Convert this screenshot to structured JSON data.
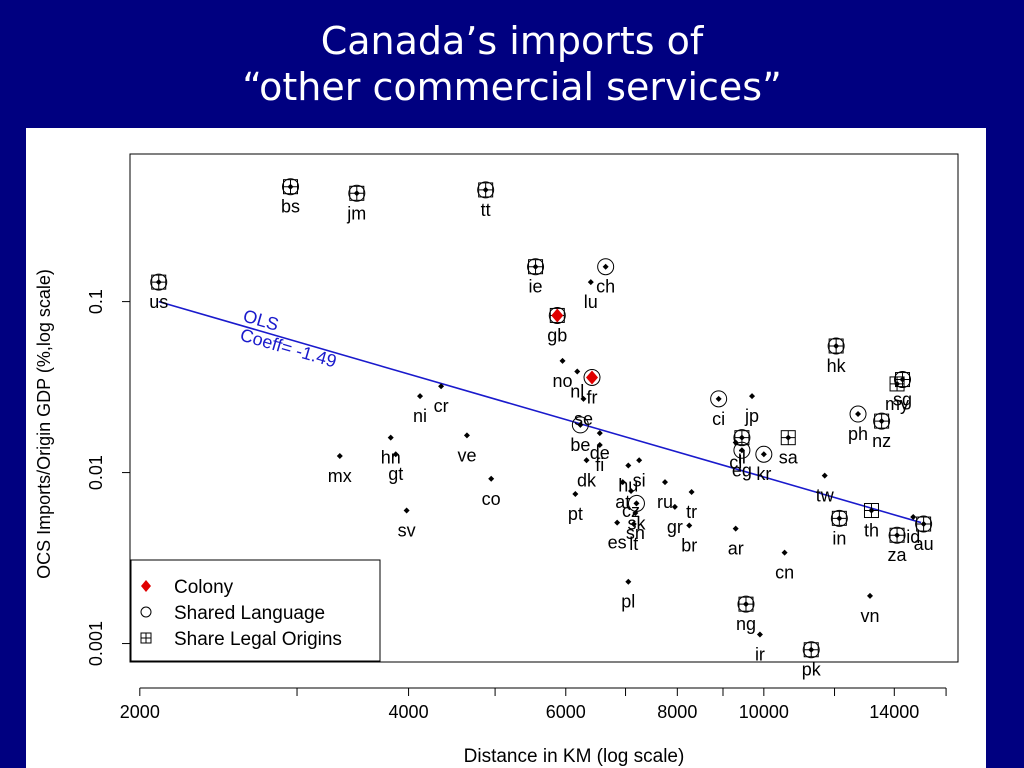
{
  "slide": {
    "title_line1": "Canada’s imports of",
    "title_line2": "“other commercial services”"
  },
  "chart_data": {
    "type": "scatter",
    "xlabel": "Distance in KM (log scale)",
    "ylabel": "OCS Imports/Origin GDP (%,log scale)",
    "x_scale": "log",
    "y_scale": "log",
    "xlim": [
      1950,
      16500
    ],
    "ylim": [
      0.00078,
      0.73
    ],
    "x_ticks": [
      {
        "value": 2000,
        "label": "2000"
      },
      {
        "value": 4000,
        "label": "4000"
      },
      {
        "value": 6000,
        "label": "6000"
      },
      {
        "value": 8000,
        "label": "8000"
      },
      {
        "value": 10000,
        "label": "10000"
      },
      {
        "value": 14000,
        "label": "14000"
      }
    ],
    "x_minor_ticks": [
      3000,
      5000,
      7000,
      9000,
      12000,
      16000
    ],
    "y_ticks": [
      {
        "value": 0.001,
        "label": "0.001"
      },
      {
        "value": 0.01,
        "label": "0.01"
      },
      {
        "value": 0.1,
        "label": "0.1"
      }
    ],
    "grid": false,
    "legend": {
      "position": "bottom-left",
      "entries": [
        {
          "label": "Colony",
          "marker": "red-diamond"
        },
        {
          "label": "Shared Language",
          "marker": "open-circle"
        },
        {
          "label": "Share Legal Origins",
          "marker": "boxed-plus"
        }
      ]
    },
    "ols": {
      "label_line1": "OLS",
      "label_line2": "Coeff= -1.49",
      "color": "#1a1acc",
      "start": [
        2100,
        0.1
      ],
      "end": [
        15000,
        0.0051
      ]
    },
    "colors": {
      "colony": "#e00000",
      "point": "#000000",
      "line": "#1a1acc"
    },
    "points": [
      {
        "label": "us",
        "x": 2100,
        "y": 0.13,
        "lang": true,
        "legal": true,
        "colony": false
      },
      {
        "label": "bs",
        "x": 2950,
        "y": 0.47,
        "lang": true,
        "legal": true,
        "colony": false
      },
      {
        "label": "jm",
        "x": 3500,
        "y": 0.43,
        "lang": true,
        "legal": true,
        "colony": false
      },
      {
        "label": "tt",
        "x": 4880,
        "y": 0.45,
        "lang": true,
        "legal": true,
        "colony": false
      },
      {
        "label": "ie",
        "x": 5550,
        "y": 0.16,
        "lang": true,
        "legal": true,
        "colony": false
      },
      {
        "label": "ch",
        "x": 6650,
        "y": 0.16,
        "lang": true,
        "legal": false,
        "colony": false
      },
      {
        "label": "lu",
        "x": 6400,
        "y": 0.13,
        "lang": false,
        "legal": false,
        "colony": false
      },
      {
        "label": "gb",
        "x": 5870,
        "y": 0.083,
        "lang": true,
        "legal": true,
        "colony": true
      },
      {
        "label": "no",
        "x": 5950,
        "y": 0.045,
        "lang": false,
        "legal": false,
        "colony": false
      },
      {
        "label": "nl",
        "x": 6180,
        "y": 0.039,
        "lang": false,
        "legal": false,
        "colony": false
      },
      {
        "label": "fr",
        "x": 6420,
        "y": 0.036,
        "lang": true,
        "legal": false,
        "colony": true
      },
      {
        "label": "se",
        "x": 6280,
        "y": 0.027,
        "lang": false,
        "legal": false,
        "colony": false
      },
      {
        "label": "be",
        "x": 6230,
        "y": 0.019,
        "lang": true,
        "legal": false,
        "colony": false
      },
      {
        "label": "de",
        "x": 6550,
        "y": 0.017,
        "lang": false,
        "legal": false,
        "colony": false
      },
      {
        "label": "fi",
        "x": 6550,
        "y": 0.0145,
        "lang": false,
        "legal": false,
        "colony": false
      },
      {
        "label": "dk",
        "x": 6330,
        "y": 0.0118,
        "lang": false,
        "legal": false,
        "colony": false
      },
      {
        "label": "at",
        "x": 6950,
        "y": 0.0088,
        "lang": false,
        "legal": false,
        "colony": false
      },
      {
        "label": "hu",
        "x": 7050,
        "y": 0.011,
        "lang": false,
        "legal": false,
        "colony": false
      },
      {
        "label": "cz",
        "x": 7100,
        "y": 0.0078,
        "lang": false,
        "legal": false,
        "colony": false
      },
      {
        "label": "sk",
        "x": 7200,
        "y": 0.0066,
        "lang": true,
        "legal": false,
        "colony": false
      },
      {
        "label": "si",
        "x": 7250,
        "y": 0.0118,
        "lang": false,
        "legal": false,
        "colony": false
      },
      {
        "label": "sn",
        "x": 7180,
        "y": 0.0058,
        "lang": false,
        "legal": false,
        "colony": false
      },
      {
        "label": "lt",
        "x": 7150,
        "y": 0.005,
        "lang": false,
        "legal": false,
        "colony": false
      },
      {
        "label": "ru",
        "x": 7750,
        "y": 0.0088,
        "lang": false,
        "legal": false,
        "colony": false
      },
      {
        "label": "pt",
        "x": 6150,
        "y": 0.0075,
        "lang": false,
        "legal": false,
        "colony": false
      },
      {
        "label": "es",
        "x": 6850,
        "y": 0.0051,
        "lang": false,
        "legal": false,
        "colony": false
      },
      {
        "label": "pl",
        "x": 7050,
        "y": 0.0023,
        "lang": false,
        "legal": false,
        "colony": false
      },
      {
        "label": "tr",
        "x": 8300,
        "y": 0.0077,
        "lang": false,
        "legal": false,
        "colony": false
      },
      {
        "label": "gr",
        "x": 7950,
        "y": 0.0063,
        "lang": false,
        "legal": false,
        "colony": false
      },
      {
        "label": "br",
        "x": 8250,
        "y": 0.0049,
        "lang": false,
        "legal": false,
        "colony": false
      },
      {
        "label": "ar",
        "x": 9300,
        "y": 0.0047,
        "lang": false,
        "legal": false,
        "colony": false
      },
      {
        "label": "ci",
        "x": 8900,
        "y": 0.027,
        "lang": true,
        "legal": false,
        "colony": false
      },
      {
        "label": "jp",
        "x": 9700,
        "y": 0.028,
        "lang": false,
        "legal": false,
        "colony": false
      },
      {
        "label": "cl",
        "x": 9300,
        "y": 0.015,
        "lang": false,
        "legal": false,
        "colony": false
      },
      {
        "label": "il",
        "x": 9450,
        "y": 0.016,
        "lang": true,
        "legal": true,
        "colony": false
      },
      {
        "label": "eg",
        "x": 9450,
        "y": 0.0135,
        "lang": true,
        "legal": false,
        "colony": false
      },
      {
        "label": "kr",
        "x": 10000,
        "y": 0.0128,
        "lang": true,
        "legal": false,
        "colony": false
      },
      {
        "label": "sa",
        "x": 10650,
        "y": 0.016,
        "lang": false,
        "legal": true,
        "colony": false
      },
      {
        "label": "tw",
        "x": 11700,
        "y": 0.0096,
        "lang": false,
        "legal": false,
        "colony": false
      },
      {
        "label": "cn",
        "x": 10550,
        "y": 0.0034,
        "lang": false,
        "legal": false,
        "colony": false
      },
      {
        "label": "ng",
        "x": 9550,
        "y": 0.0017,
        "lang": true,
        "legal": true,
        "colony": false
      },
      {
        "label": "ir",
        "x": 9900,
        "y": 0.00113,
        "lang": false,
        "legal": false,
        "colony": false
      },
      {
        "label": "pk",
        "x": 11300,
        "y": 0.00092,
        "lang": true,
        "legal": true,
        "colony": false
      },
      {
        "label": "hk",
        "x": 12050,
        "y": 0.055,
        "lang": true,
        "legal": true,
        "colony": false
      },
      {
        "label": "ph",
        "x": 12750,
        "y": 0.022,
        "lang": true,
        "legal": false,
        "colony": false
      },
      {
        "label": "nz",
        "x": 13550,
        "y": 0.02,
        "lang": true,
        "legal": true,
        "colony": false
      },
      {
        "label": "my",
        "x": 14100,
        "y": 0.033,
        "lang": false,
        "legal": true,
        "colony": false
      },
      {
        "label": "sg",
        "x": 14300,
        "y": 0.035,
        "lang": true,
        "legal": true,
        "colony": false
      },
      {
        "label": "in",
        "x": 12150,
        "y": 0.0054,
        "lang": true,
        "legal": true,
        "colony": false
      },
      {
        "label": "th",
        "x": 13200,
        "y": 0.006,
        "lang": false,
        "legal": true,
        "colony": false
      },
      {
        "label": "vn",
        "x": 13150,
        "y": 0.0019,
        "lang": false,
        "legal": false,
        "colony": false
      },
      {
        "label": "za",
        "x": 14100,
        "y": 0.0043,
        "lang": true,
        "legal": true,
        "colony": false
      },
      {
        "label": "id",
        "x": 14700,
        "y": 0.0055,
        "lang": false,
        "legal": false,
        "colony": false
      },
      {
        "label": "au",
        "x": 15100,
        "y": 0.005,
        "lang": true,
        "legal": true,
        "colony": false
      },
      {
        "label": "mx",
        "x": 3350,
        "y": 0.0125,
        "lang": false,
        "legal": false,
        "colony": false
      },
      {
        "label": "hn",
        "x": 3820,
        "y": 0.016,
        "lang": false,
        "legal": false,
        "colony": false
      },
      {
        "label": "gt",
        "x": 3870,
        "y": 0.0128,
        "lang": false,
        "legal": false,
        "colony": false
      },
      {
        "label": "ni",
        "x": 4120,
        "y": 0.028,
        "lang": false,
        "legal": false,
        "colony": false
      },
      {
        "label": "cr",
        "x": 4350,
        "y": 0.032,
        "lang": false,
        "legal": false,
        "colony": false
      },
      {
        "label": "ve",
        "x": 4650,
        "y": 0.0165,
        "lang": false,
        "legal": false,
        "colony": false
      },
      {
        "label": "co",
        "x": 4950,
        "y": 0.0092,
        "lang": false,
        "legal": false,
        "colony": false
      },
      {
        "label": "sv",
        "x": 3980,
        "y": 0.006,
        "lang": false,
        "legal": false,
        "colony": false
      }
    ]
  }
}
